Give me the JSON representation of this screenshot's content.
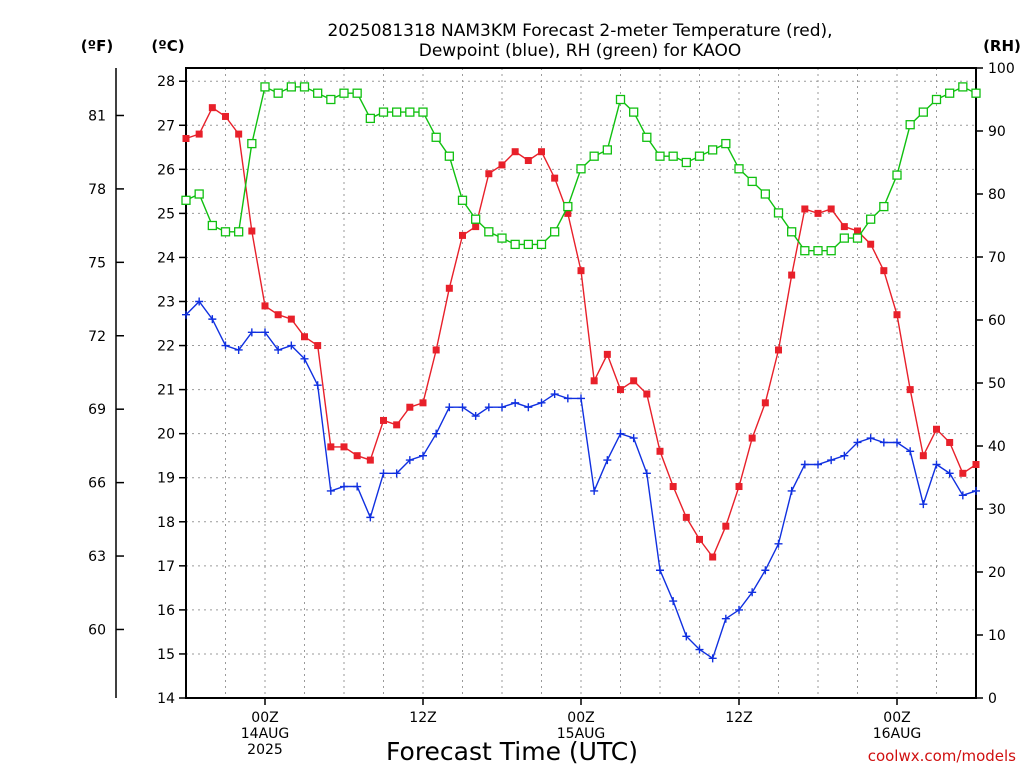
{
  "chart_data": {
    "type": "line",
    "title": "2025081318 NAM3KM Forecast 2-meter Temperature (red),",
    "subtitle": "Dewpoint (blue), RH (green) for KAOO",
    "xlabel": "Forecast Time (UTC)",
    "credit": "coolwx.com/models",
    "units": {
      "f": "(ºF)",
      "c": "(ºC)",
      "rh": "(RH)"
    },
    "x_range_hours": [
      -6,
      54
    ],
    "c_axis": {
      "ylim": [
        14,
        28.3
      ],
      "ticks": [
        "14",
        "15",
        "16",
        "17",
        "18",
        "19",
        "20",
        "21",
        "22",
        "23",
        "24",
        "25",
        "26",
        "27",
        "28"
      ]
    },
    "f_axis": {
      "ticks": [
        "60",
        "63",
        "66",
        "69",
        "72",
        "75",
        "78",
        "81"
      ]
    },
    "rh_axis": {
      "ylim": [
        0,
        100
      ],
      "ticks": [
        "0",
        "10",
        "20",
        "30",
        "40",
        "50",
        "60",
        "70",
        "80",
        "90",
        "100"
      ]
    },
    "x_ticks": [
      {
        "hour": 0,
        "lines": [
          "00Z",
          "14AUG",
          "2025"
        ]
      },
      {
        "hour": 12,
        "lines": [
          "12Z"
        ]
      },
      {
        "hour": 24,
        "lines": [
          "00Z",
          "15AUG"
        ]
      },
      {
        "hour": 36,
        "lines": [
          "12Z"
        ]
      },
      {
        "hour": 48,
        "lines": [
          "00Z",
          "16AUG"
        ]
      }
    ],
    "grid": true,
    "series": [
      {
        "name": "Temperature",
        "color": "#e8202a",
        "marker": "filled-square",
        "axis": "c",
        "x": [
          -6,
          -5,
          -4,
          -3,
          -2,
          -1,
          0,
          1,
          2,
          3,
          4,
          5,
          6,
          7,
          8,
          9,
          10,
          11,
          12,
          13,
          14,
          15,
          16,
          17,
          18,
          19,
          20,
          21,
          22,
          23,
          24,
          25,
          26,
          27,
          28,
          29,
          30,
          31,
          32,
          33,
          34,
          35,
          36,
          37,
          38,
          39,
          40,
          41,
          42,
          43,
          44,
          45,
          46,
          47,
          48,
          49,
          50,
          51,
          52,
          53,
          54
        ],
        "values": [
          26.7,
          26.8,
          27.4,
          27.2,
          26.8,
          24.6,
          22.9,
          22.7,
          22.6,
          22.2,
          22.0,
          19.7,
          19.7,
          19.5,
          19.4,
          20.3,
          20.2,
          20.6,
          20.7,
          21.9,
          23.3,
          24.5,
          24.7,
          25.9,
          26.1,
          26.4,
          26.2,
          26.4,
          25.8,
          25.0,
          23.7,
          21.2,
          21.8,
          21.0,
          21.2,
          20.9,
          19.6,
          18.8,
          18.1,
          17.6,
          17.2,
          17.9,
          18.8,
          19.9,
          20.7,
          21.9,
          23.6,
          25.1,
          25.0,
          25.1,
          24.7,
          24.6,
          24.3,
          23.7,
          22.7,
          21.0,
          19.5,
          20.1,
          19.8,
          19.1,
          19.3
        ]
      },
      {
        "name": "Dewpoint",
        "color": "#1030e0",
        "marker": "plus",
        "axis": "c",
        "x": [
          -6,
          -5,
          -4,
          -3,
          -2,
          -1,
          0,
          1,
          2,
          3,
          4,
          5,
          6,
          7,
          8,
          9,
          10,
          11,
          12,
          13,
          14,
          15,
          16,
          17,
          18,
          19,
          20,
          21,
          22,
          23,
          24,
          25,
          26,
          27,
          28,
          29,
          30,
          31,
          32,
          33,
          34,
          35,
          36,
          37,
          38,
          39,
          40,
          41,
          42,
          43,
          44,
          45,
          46,
          47,
          48,
          49,
          50,
          51,
          52,
          53,
          54
        ],
        "values": [
          22.7,
          23.0,
          22.6,
          22.0,
          21.9,
          22.3,
          22.3,
          21.9,
          22.0,
          21.7,
          21.1,
          18.7,
          18.8,
          18.8,
          18.1,
          19.1,
          19.1,
          19.4,
          19.5,
          20.0,
          20.6,
          20.6,
          20.4,
          20.6,
          20.6,
          20.7,
          20.6,
          20.7,
          20.9,
          20.8,
          20.8,
          18.7,
          19.4,
          20.0,
          19.9,
          19.1,
          16.9,
          16.2,
          15.4,
          15.1,
          14.9,
          15.8,
          16.0,
          16.4,
          16.9,
          17.5,
          18.7,
          19.3,
          19.3,
          19.4,
          19.5,
          19.8,
          19.9,
          19.8,
          19.8,
          19.6,
          18.4,
          19.3,
          19.1,
          18.6,
          18.7
        ]
      },
      {
        "name": "RH",
        "color": "#10c010",
        "marker": "open-square",
        "axis": "rh",
        "x": [
          -6,
          -5,
          -4,
          -3,
          -2,
          -1,
          0,
          1,
          2,
          3,
          4,
          5,
          6,
          7,
          8,
          9,
          10,
          11,
          12,
          13,
          14,
          15,
          16,
          17,
          18,
          19,
          20,
          21,
          22,
          23,
          24,
          25,
          26,
          27,
          28,
          29,
          30,
          31,
          32,
          33,
          34,
          35,
          36,
          37,
          38,
          39,
          40,
          41,
          42,
          43,
          44,
          45,
          46,
          47,
          48,
          49,
          50,
          51,
          52,
          53,
          54
        ],
        "values": [
          79,
          80,
          75,
          74,
          74,
          88,
          97,
          96,
          97,
          97,
          96,
          95,
          96,
          96,
          92,
          93,
          93,
          93,
          93,
          89,
          86,
          79,
          76,
          74,
          73,
          72,
          72,
          72,
          74,
          78,
          84,
          86,
          87,
          95,
          93,
          89,
          86,
          86,
          85,
          86,
          87,
          88,
          84,
          82,
          80,
          77,
          74,
          71,
          71,
          71,
          73,
          73,
          76,
          78,
          83,
          91,
          93,
          95,
          96,
          97,
          96
        ]
      }
    ]
  }
}
